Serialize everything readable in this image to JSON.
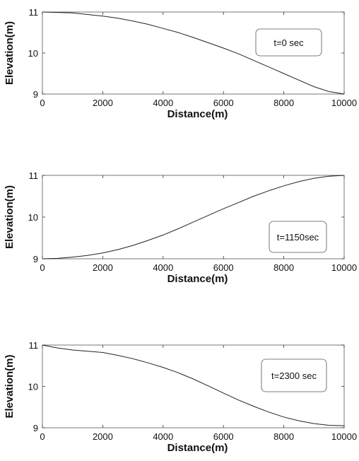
{
  "chart_data": [
    {
      "type": "line",
      "xlabel": "Distance(m)",
      "ylabel": "Elevation(m)",
      "xlim": [
        0,
        10000
      ],
      "ylim": [
        9,
        11
      ],
      "x_ticks": [
        "0",
        "2000",
        "4000",
        "6000",
        "8000",
        "10000"
      ],
      "y_ticks": [
        "9",
        "10",
        "11"
      ],
      "legend": "t=0 sec",
      "legend_position": "right",
      "grid": false,
      "series": [
        {
          "x": [
            0,
            500,
            1000,
            1500,
            2000,
            2500,
            3000,
            3500,
            4000,
            4500,
            5000,
            5500,
            6000,
            6500,
            7000,
            7500,
            8000,
            8500,
            9000,
            9500,
            10000
          ],
          "y": [
            11.0,
            10.99,
            10.98,
            10.94,
            10.9,
            10.85,
            10.78,
            10.7,
            10.6,
            10.5,
            10.38,
            10.25,
            10.12,
            9.98,
            9.82,
            9.66,
            9.5,
            9.34,
            9.18,
            9.06,
            9.0
          ]
        }
      ]
    },
    {
      "type": "line",
      "xlabel": "Distance(m)",
      "ylabel": "Elevation(m)",
      "xlim": [
        0,
        10000
      ],
      "ylim": [
        9,
        11
      ],
      "x_ticks": [
        "0",
        "2000",
        "4000",
        "6000",
        "8000",
        "10000"
      ],
      "y_ticks": [
        "9",
        "10",
        "11"
      ],
      "legend": "t=1150sec",
      "legend_position": "right",
      "grid": false,
      "series": [
        {
          "x": [
            0,
            500,
            1000,
            1500,
            2000,
            2500,
            3000,
            3500,
            4000,
            4500,
            5000,
            5500,
            6000,
            6500,
            7000,
            7500,
            8000,
            8500,
            9000,
            9500,
            10000
          ],
          "y": [
            9.0,
            9.01,
            9.04,
            9.08,
            9.14,
            9.22,
            9.32,
            9.44,
            9.57,
            9.72,
            9.88,
            10.04,
            10.2,
            10.35,
            10.5,
            10.63,
            10.75,
            10.85,
            10.93,
            10.98,
            11.0
          ]
        }
      ]
    },
    {
      "type": "line",
      "xlabel": "Distance(m)",
      "ylabel": "Elevation(m)",
      "xlim": [
        0,
        10000
      ],
      "ylim": [
        9,
        11
      ],
      "x_ticks": [
        "0",
        "2000",
        "4000",
        "6000",
        "8000",
        "10000"
      ],
      "y_ticks": [
        "9",
        "10",
        "11"
      ],
      "legend": "t=2300 sec",
      "legend_position": "right",
      "grid": false,
      "series": [
        {
          "x": [
            0,
            500,
            1000,
            1500,
            2000,
            2500,
            3000,
            3500,
            4000,
            4500,
            5000,
            5500,
            6000,
            6500,
            7000,
            7500,
            8000,
            8500,
            9000,
            9500,
            10000
          ],
          "y": [
            11.0,
            10.93,
            10.88,
            10.85,
            10.82,
            10.75,
            10.67,
            10.57,
            10.46,
            10.33,
            10.18,
            10.01,
            9.84,
            9.67,
            9.52,
            9.38,
            9.26,
            9.17,
            9.1,
            9.06,
            9.05
          ]
        }
      ]
    }
  ]
}
